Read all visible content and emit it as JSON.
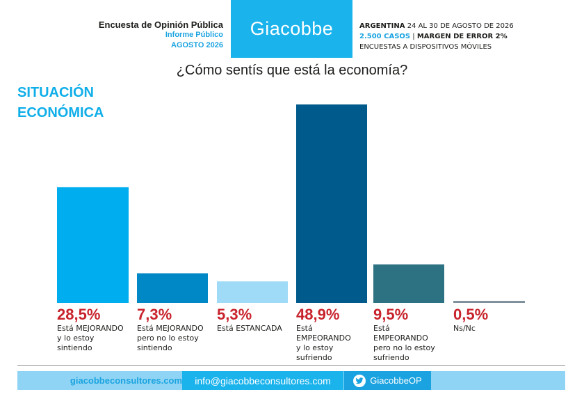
{
  "header": {
    "survey_title": "Encuesta de Opinión Pública",
    "report_type": "Informe Público",
    "period": "AGOSTO 2026",
    "brand": "Giacobbe",
    "country": "ARGENTINA",
    "dates": "24 AL 30 DE AGOSTO DE 2026",
    "cases": "2.500 CASOS",
    "margin": "MARGEN DE ERROR 2%",
    "method": "ENCUESTAS A DISPOSITIVOS MÓVILES"
  },
  "question": "¿Cómo sentís que está la economía?",
  "section_title_1": "SITUACIÓN",
  "section_title_2": "ECONÓMICA",
  "footer": {
    "website": "giacobbeconsultores.com",
    "email": "info@giacobbeconsultores.com",
    "twitter": "GiacobbeOP",
    "twitter_icon": "twitter-bird-icon"
  },
  "chart_data": {
    "type": "bar",
    "title": "¿Cómo sentís que está la economía?",
    "value_labels": [
      "28,5%",
      "7,3%",
      "5,3%",
      "48,9%",
      "9,5%",
      "0,5%"
    ],
    "categories": [
      "Está MEJORANDO\ny lo estoy\nsintiendo",
      "Está MEJORANDO\npero no lo estoy\nsintiendo",
      "Está ESTANCADA",
      "Está\nEMPEORANDO\ny lo estoy\nsufriendo",
      "Está\nEMPEORANDO\npero no lo estoy\nsufriendo",
      "Ns/Nc"
    ],
    "values": [
      28.5,
      7.3,
      5.3,
      48.9,
      9.5,
      0.5
    ],
    "colors": [
      "#00adef",
      "#0088c6",
      "#9fdaf6",
      "#005a8c",
      "#2d7283",
      "#7d8f9a"
    ],
    "unit": "%",
    "ylim": [
      0,
      50
    ],
    "grid": false,
    "legend": "none"
  }
}
